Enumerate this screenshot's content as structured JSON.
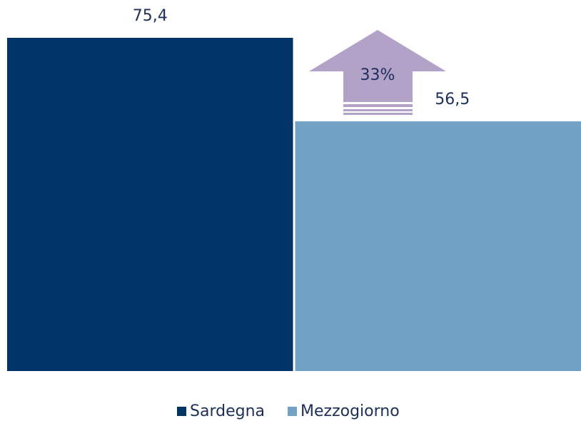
{
  "chart_data": {
    "type": "bar",
    "categories": [
      null
    ],
    "series": [
      {
        "name": "Sardegna",
        "color": "#003366",
        "values": [
          75.4
        ],
        "value_labels": [
          "75,4"
        ]
      },
      {
        "name": "Mezzogiorno",
        "color": "#72a2c6",
        "values": [
          56.5
        ],
        "value_labels": [
          "56,5"
        ]
      }
    ],
    "annotations": [
      "33%"
    ],
    "annotation_color": "#b3a2c8",
    "ylim": [
      0,
      75.4
    ],
    "legend": "bottom"
  }
}
